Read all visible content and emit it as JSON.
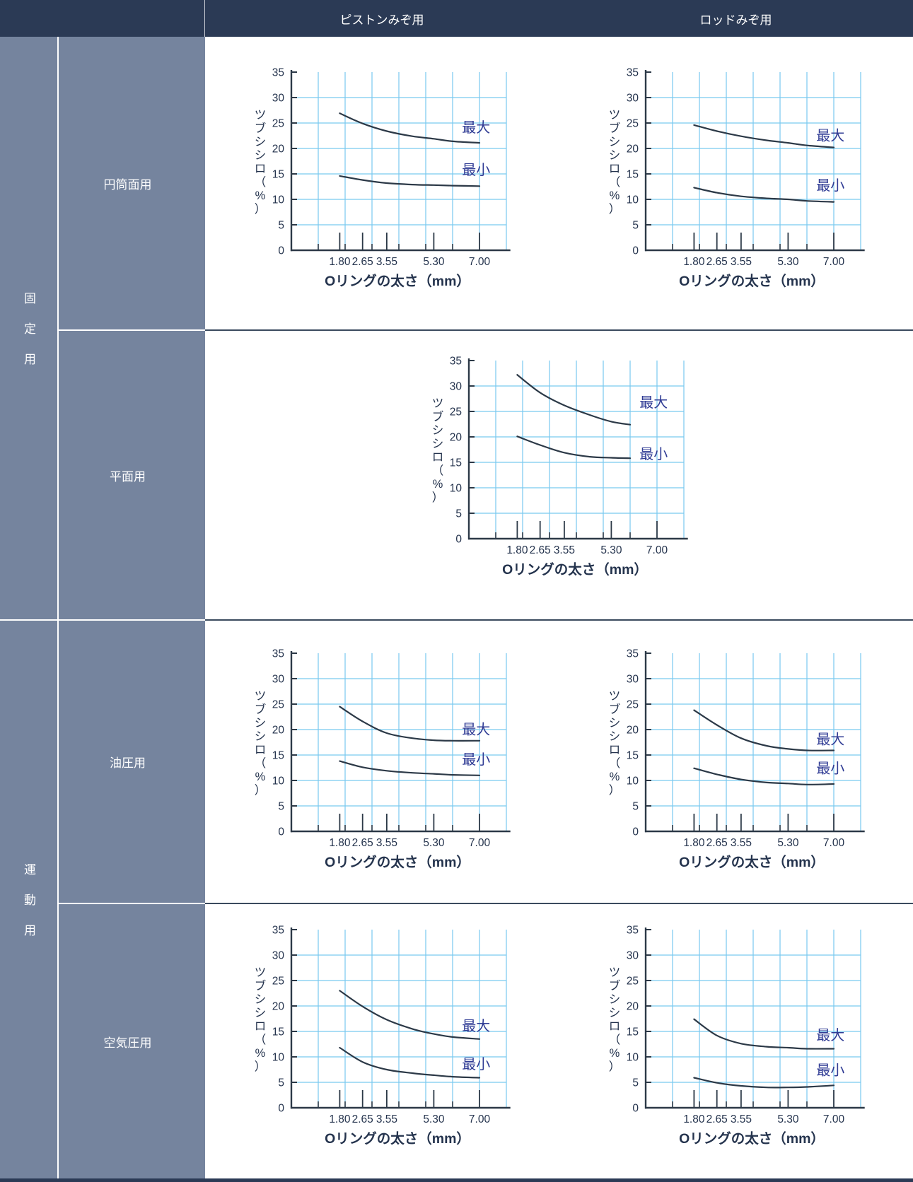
{
  "header": {
    "columns": [
      "ピストンみぞ用",
      "ロッドみぞ用"
    ]
  },
  "sidebar": {
    "groups": [
      {
        "label": "固定用",
        "rows": [
          "円筒面用",
          "平面用"
        ]
      },
      {
        "label": "運動用",
        "rows": [
          "油圧用",
          "空気圧用"
        ]
      }
    ]
  },
  "axes": {
    "xlabel": "Oリングの太さ（mm）",
    "ylabel": "ツブシシロ（%）",
    "x_tick_labels": [
      "1.80",
      "2.65",
      "3.55",
      "5.30",
      "7.00"
    ],
    "x_tick_values": [
      1.8,
      2.65,
      3.55,
      5.3,
      7.0
    ],
    "x_minor_ticks": [
      1,
      2,
      3,
      4,
      5,
      6
    ],
    "y_ticks": [
      0,
      5,
      10,
      15,
      20,
      25,
      30,
      35
    ],
    "xlim": [
      0,
      8.15
    ],
    "grid_x_max": 8,
    "ylim": [
      0,
      35
    ],
    "grid": true,
    "legend_position": "inline-right"
  },
  "colors": {
    "header_bg": "#2b3a55",
    "sidebar_bg": "#75849e",
    "row_divider_dark": "#3a4a5e",
    "grid_line": "#79c9ef",
    "axis_line": "#2c3947",
    "curve": "#2c3947",
    "tick_text": "#24334d",
    "series_label": "#2f3b94",
    "chart_bg": "#ffffff"
  },
  "chart_data": [
    {
      "id": "fixed-cylindrical-piston",
      "type": "line",
      "group": "固定用",
      "row_label": "円筒面用",
      "column": "ピストンみぞ用",
      "xlabel": "Oリングの太さ（mm）",
      "ylabel": "ツブシシロ（%）",
      "xlim": [
        0,
        8.15
      ],
      "ylim": [
        0,
        35
      ],
      "x": [
        1.8,
        2.65,
        3.55,
        4.5,
        5.3,
        6.0,
        7.0
      ],
      "series": [
        {
          "name": "最大",
          "values": [
            26.9,
            24.9,
            23.4,
            22.4,
            21.9,
            21.4,
            21.1
          ],
          "label_y": 24.2
        },
        {
          "name": "最小",
          "values": [
            14.6,
            13.8,
            13.2,
            12.9,
            12.8,
            12.7,
            12.6
          ],
          "label_y": 15.8
        }
      ]
    },
    {
      "id": "fixed-cylindrical-rod",
      "type": "line",
      "group": "固定用",
      "row_label": "円筒面用",
      "column": "ロッドみぞ用",
      "xlabel": "Oリングの太さ（mm）",
      "ylabel": "ツブシシロ（%）",
      "xlim": [
        0,
        8.15
      ],
      "ylim": [
        0,
        35
      ],
      "x": [
        1.8,
        2.65,
        3.55,
        4.5,
        5.3,
        6.0,
        7.0
      ],
      "series": [
        {
          "name": "最大",
          "values": [
            24.6,
            23.4,
            22.4,
            21.6,
            21.1,
            20.6,
            20.2
          ],
          "label_y": 22.6
        },
        {
          "name": "最小",
          "values": [
            12.3,
            11.3,
            10.6,
            10.2,
            10.0,
            9.7,
            9.5
          ],
          "label_y": 12.8
        }
      ]
    },
    {
      "id": "fixed-flat",
      "type": "line",
      "group": "固定用",
      "row_label": "平面用",
      "column": "center",
      "xlabel": "Oリングの太さ（mm）",
      "ylabel": "ツブシシロ（%）",
      "xlim": [
        0,
        8.15
      ],
      "ylim": [
        0,
        35
      ],
      "x": [
        1.8,
        2.65,
        3.55,
        4.5,
        5.3,
        6.0
      ],
      "series": [
        {
          "name": "最大",
          "values": [
            32.2,
            28.7,
            26.2,
            24.3,
            23.0,
            22.4
          ],
          "label_y": 26.8
        },
        {
          "name": "最小",
          "values": [
            20.1,
            18.4,
            16.9,
            16.1,
            15.9,
            15.8
          ],
          "label_y": 16.7
        }
      ]
    },
    {
      "id": "motion-hydraulic-piston",
      "type": "line",
      "group": "運動用",
      "row_label": "油圧用",
      "column": "ピストンみぞ用",
      "xlabel": "Oリングの太さ（mm）",
      "ylabel": "ツブシシロ（%）",
      "xlim": [
        0,
        8.15
      ],
      "ylim": [
        0,
        35
      ],
      "x": [
        1.8,
        2.65,
        3.55,
        4.5,
        5.3,
        6.0,
        7.0
      ],
      "series": [
        {
          "name": "最大",
          "values": [
            24.5,
            21.6,
            19.3,
            18.3,
            17.9,
            17.8,
            17.8
          ],
          "label_y": 20.1
        },
        {
          "name": "最小",
          "values": [
            13.8,
            12.6,
            11.9,
            11.5,
            11.3,
            11.1,
            11.0
          ],
          "label_y": 14.2
        }
      ]
    },
    {
      "id": "motion-hydraulic-rod",
      "type": "line",
      "group": "運動用",
      "row_label": "油圧用",
      "column": "ロッドみぞ用",
      "xlabel": "Oリングの太さ（mm）",
      "ylabel": "ツブシシロ（%）",
      "xlim": [
        0,
        8.15
      ],
      "ylim": [
        0,
        35
      ],
      "x": [
        1.8,
        2.65,
        3.55,
        4.5,
        5.3,
        6.0,
        7.0
      ],
      "series": [
        {
          "name": "最大",
          "values": [
            23.8,
            20.9,
            18.3,
            16.8,
            16.2,
            15.9,
            15.9
          ],
          "label_y": 18.1
        },
        {
          "name": "最小",
          "values": [
            12.4,
            11.2,
            10.2,
            9.6,
            9.4,
            9.2,
            9.3
          ],
          "label_y": 12.4
        }
      ]
    },
    {
      "id": "motion-pneumatic-piston",
      "type": "line",
      "group": "運動用",
      "row_label": "空気圧用",
      "column": "ピストンみぞ用",
      "xlabel": "Oリングの太さ（mm）",
      "ylabel": "ツブシシロ（%）",
      "xlim": [
        0,
        8.15
      ],
      "ylim": [
        0,
        35
      ],
      "x": [
        1.8,
        2.65,
        3.55,
        4.5,
        5.3,
        6.0,
        7.0
      ],
      "series": [
        {
          "name": "最大",
          "values": [
            23.0,
            19.9,
            17.3,
            15.5,
            14.5,
            13.9,
            13.5
          ],
          "label_y": 16.1
        },
        {
          "name": "最小",
          "values": [
            11.8,
            9.0,
            7.5,
            6.8,
            6.4,
            6.1,
            5.9
          ],
          "label_y": 8.6
        }
      ]
    },
    {
      "id": "motion-pneumatic-rod",
      "type": "line",
      "group": "運動用",
      "row_label": "空気圧用",
      "column": "ロッドみぞ用",
      "xlabel": "Oリングの太さ（mm）",
      "ylabel": "ツブシシロ（%）",
      "xlim": [
        0,
        8.15
      ],
      "ylim": [
        0,
        35
      ],
      "x": [
        1.8,
        2.65,
        3.55,
        4.5,
        5.3,
        6.0,
        7.0
      ],
      "series": [
        {
          "name": "最大",
          "values": [
            17.4,
            14.2,
            12.6,
            12.0,
            11.8,
            11.6,
            11.6
          ],
          "label_y": 14.3
        },
        {
          "name": "最小",
          "values": [
            5.9,
            4.9,
            4.3,
            4.0,
            4.0,
            4.1,
            4.4
          ],
          "label_y": 7.4
        }
      ]
    }
  ]
}
